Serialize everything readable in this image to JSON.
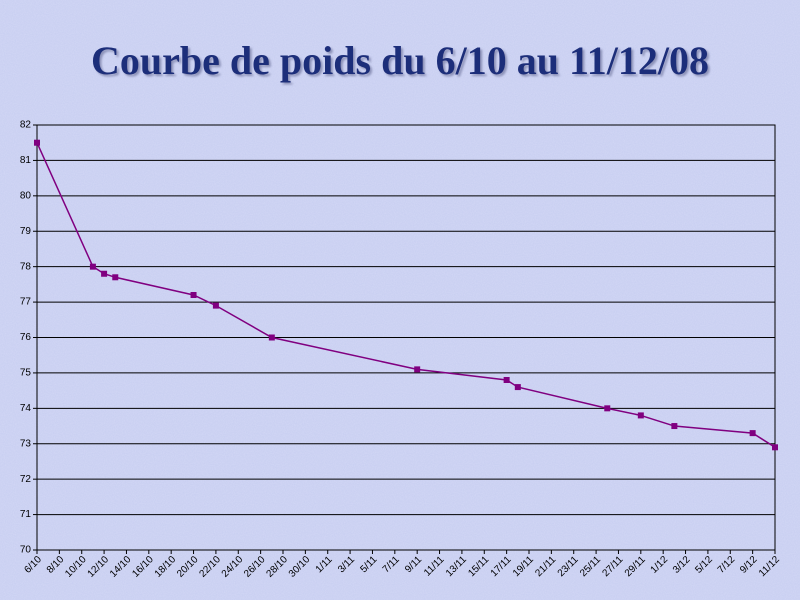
{
  "chart_data": {
    "type": "line",
    "title": "Courbe de poids du 6/10 au 11/12/08",
    "x": [
      "6/10",
      "11/10",
      "12/10",
      "13/10",
      "20/10",
      "22/10",
      "27/10",
      "9/11",
      "17/11",
      "18/11",
      "26/11",
      "29/11",
      "2/12",
      "9/12",
      "11/12"
    ],
    "series": [
      {
        "color": "#800080",
        "values": [
          81.5,
          78.0,
          77.8,
          77.7,
          77.2,
          76.9,
          76.0,
          75.1,
          74.8,
          74.6,
          74.0,
          73.8,
          73.5,
          73.3,
          72.9
        ]
      }
    ],
    "xlim": [
      "6/10",
      "11/12"
    ],
    "xticks": [
      "6/10",
      "8/10",
      "10/10",
      "12/10",
      "14/10",
      "16/10",
      "18/10",
      "20/10",
      "22/10",
      "24/10",
      "26/10",
      "28/10",
      "30/10",
      "1/11",
      "3/11",
      "5/11",
      "7/11",
      "9/11",
      "11/11",
      "13/11",
      "15/11",
      "17/11",
      "19/11",
      "21/11",
      "23/11",
      "25/11",
      "27/11",
      "29/11",
      "1/12",
      "3/12",
      "5/12",
      "7/12",
      "9/12",
      "11/12"
    ],
    "ylim": [
      70,
      82
    ],
    "yticks": [
      70,
      71,
      72,
      73,
      74,
      75,
      76,
      77,
      78,
      79,
      80,
      81,
      82
    ],
    "grid": true
  }
}
